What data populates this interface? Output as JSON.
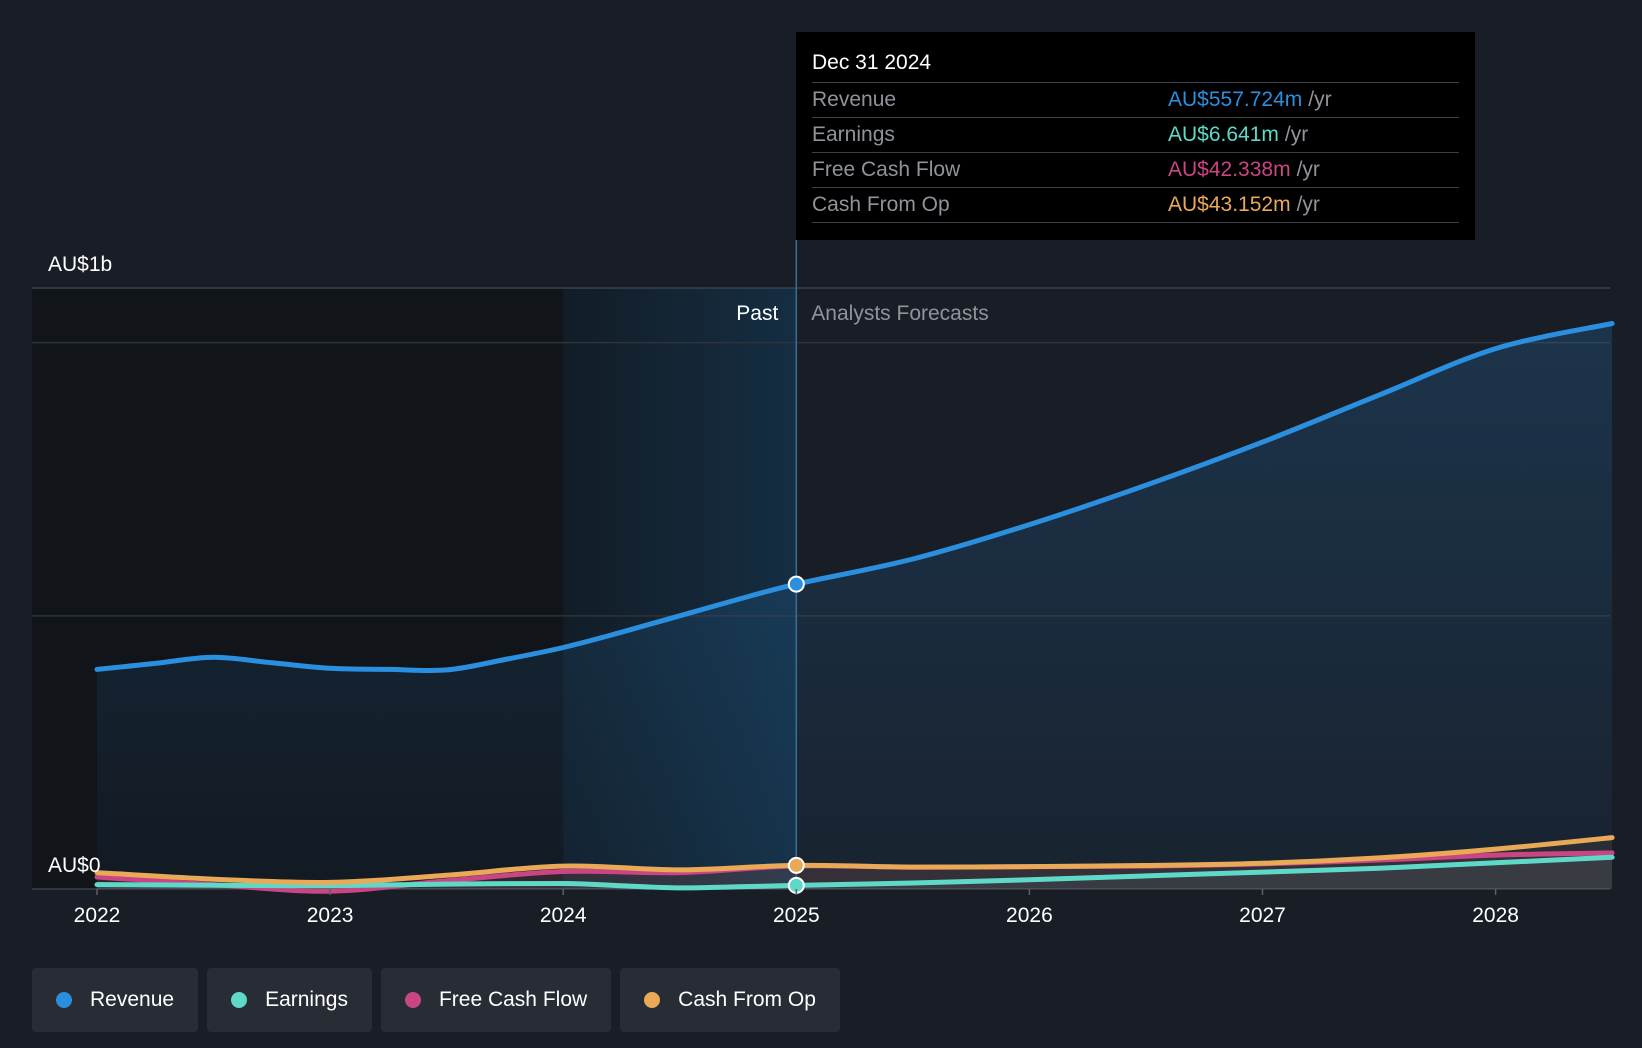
{
  "colors": {
    "revenue": "#2b8fdf",
    "earnings": "#5ed9c8",
    "free_cash_flow": "#c94584",
    "cash_from_op": "#e9a957"
  },
  "tooltip": {
    "date": "Dec 31 2024",
    "rows": [
      {
        "label": "Revenue",
        "value": "AU$557.724m",
        "unit": "/yr"
      },
      {
        "label": "Earnings",
        "value": "AU$6.641m",
        "unit": "/yr"
      },
      {
        "label": "Free Cash Flow",
        "value": "AU$42.338m",
        "unit": "/yr"
      },
      {
        "label": "Cash From Op",
        "value": "AU$43.152m",
        "unit": "/yr"
      }
    ]
  },
  "legend": [
    {
      "label": "Revenue",
      "color": "#2b8fdf"
    },
    {
      "label": "Earnings",
      "color": "#5ed9c8"
    },
    {
      "label": "Free Cash Flow",
      "color": "#c94584"
    },
    {
      "label": "Cash From Op",
      "color": "#e9a957"
    }
  ],
  "chart_data": {
    "type": "area",
    "title": "",
    "y_top_label": "AU$1b",
    "y_bottom_label": "AU$0",
    "past_label": "Past",
    "forecast_label": "Analysts Forecasts",
    "ylim": [
      0,
      1100
    ],
    "xlim": [
      2022,
      2028.5
    ],
    "divider_x": 2025,
    "past_highlight_start": 2024,
    "x_ticks": [
      "2022",
      "2023",
      "2024",
      "2025",
      "2026",
      "2027",
      "2028"
    ],
    "series": [
      {
        "name": "Revenue",
        "points": [
          [
            2022,
            402
          ],
          [
            2022.25,
            413
          ],
          [
            2022.5,
            424
          ],
          [
            2022.75,
            414
          ],
          [
            2023,
            404
          ],
          [
            2023.25,
            402
          ],
          [
            2023.5,
            401
          ],
          [
            2023.75,
            420
          ],
          [
            2024,
            442
          ],
          [
            2024.25,
            470
          ],
          [
            2024.5,
            500
          ],
          [
            2024.75,
            530
          ],
          [
            2025,
            558
          ],
          [
            2025.5,
            604
          ],
          [
            2026,
            667
          ],
          [
            2026.5,
            739
          ],
          [
            2027,
            818
          ],
          [
            2027.5,
            904
          ],
          [
            2028,
            989
          ],
          [
            2028.5,
            1035
          ]
        ]
      },
      {
        "name": "Earnings",
        "points": [
          [
            2022,
            8
          ],
          [
            2022.5,
            7
          ],
          [
            2023,
            6
          ],
          [
            2023.5,
            9
          ],
          [
            2024,
            10
          ],
          [
            2024.25,
            6
          ],
          [
            2024.5,
            2
          ],
          [
            2024.75,
            4
          ],
          [
            2025,
            6.6
          ],
          [
            2025.5,
            11
          ],
          [
            2026,
            17
          ],
          [
            2026.5,
            24
          ],
          [
            2027,
            31
          ],
          [
            2027.5,
            38
          ],
          [
            2028,
            48
          ],
          [
            2028.5,
            58
          ]
        ]
      },
      {
        "name": "Free Cash Flow",
        "points": [
          [
            2022,
            22
          ],
          [
            2022.5,
            8
          ],
          [
            2023,
            -4
          ],
          [
            2023.5,
            15
          ],
          [
            2024,
            32
          ],
          [
            2024.5,
            30
          ],
          [
            2025,
            42.3
          ],
          [
            2025.5,
            40
          ],
          [
            2026,
            41
          ],
          [
            2026.5,
            42
          ],
          [
            2027,
            46
          ],
          [
            2027.5,
            53
          ],
          [
            2028,
            62
          ],
          [
            2028.5,
            66
          ]
        ]
      },
      {
        "name": "Cash From Op",
        "points": [
          [
            2022,
            30
          ],
          [
            2022.5,
            18
          ],
          [
            2023,
            12
          ],
          [
            2023.5,
            25
          ],
          [
            2024,
            42
          ],
          [
            2024.5,
            35
          ],
          [
            2025,
            43.2
          ],
          [
            2025.5,
            40
          ],
          [
            2026,
            41
          ],
          [
            2026.5,
            43
          ],
          [
            2027,
            47
          ],
          [
            2027.5,
            57
          ],
          [
            2028,
            73
          ],
          [
            2028.5,
            94
          ]
        ]
      }
    ]
  }
}
